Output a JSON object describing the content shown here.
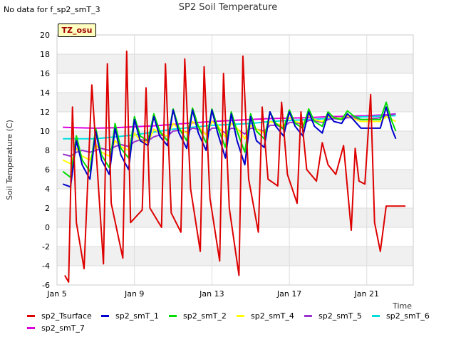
{
  "header": {
    "nodata_text": "No data for f_sp2_smT_3",
    "badge_text": "TZ_osu"
  },
  "chart_data": {
    "type": "line",
    "title": "SP2 Soil Temperature",
    "xlabel": "Time",
    "ylabel": "Soil Temperature (C)",
    "ylim": [
      -6,
      20
    ],
    "yticks": [
      -6,
      -4,
      -2,
      0,
      2,
      4,
      6,
      8,
      10,
      12,
      14,
      16,
      18,
      20
    ],
    "xlim": [
      "Jan 5",
      "Jan 23.4"
    ],
    "xticks": [
      "Jan 5",
      "Jan 9",
      "Jan 13",
      "Jan 17",
      "Jan 21"
    ],
    "grid": true,
    "legend_position": "bottom",
    "series": [
      {
        "name": "sp2_Tsurface",
        "color": "#dd0000",
        "x": [
          "Jan 5.4",
          "Jan 5.6",
          "Jan 5.8",
          "Jan 6.0",
          "Jan 6.4",
          "Jan 6.8",
          "Jan 7.4",
          "Jan 7.6",
          "Jan 7.8",
          "Jan 8.4",
          "Jan 8.6",
          "Jan 8.8",
          "Jan 9.4",
          "Jan 9.6",
          "Jan 9.8",
          "Jan 10.4",
          "Jan 10.6",
          "Jan 10.9",
          "Jan 11.4",
          "Jan 11.6",
          "Jan 11.9",
          "Jan 12.4",
          "Jan 12.6",
          "Jan 12.9",
          "Jan 13.4",
          "Jan 13.6",
          "Jan 13.9",
          "Jan 14.4",
          "Jan 14.6",
          "Jan 14.9",
          "Jan 15.4",
          "Jan 15.6",
          "Jan 15.9",
          "Jan 16.4",
          "Jan 16.6",
          "Jan 16.9",
          "Jan 17.4",
          "Jan 17.6",
          "Jan 17.9",
          "Jan 18.4",
          "Jan 18.7",
          "Jan 19.0",
          "Jan 19.4",
          "Jan 19.8",
          "Jan 20.2",
          "Jan 20.4",
          "Jan 20.6",
          "Jan 20.9",
          "Jan 21.2",
          "Jan 21.4",
          "Jan 21.7",
          "Jan 22.0",
          "Jan 22.4",
          "Jan 22.8",
          "Jan 23.0"
        ],
        "values": [
          -5.0,
          -5.7,
          12.5,
          0.5,
          -4.3,
          14.8,
          -3.8,
          17.0,
          2.5,
          -3.2,
          18.3,
          0.5,
          1.8,
          14.5,
          2.0,
          0.0,
          17.0,
          1.5,
          -0.5,
          17.5,
          4.0,
          -2.5,
          16.7,
          3.0,
          -3.5,
          16.0,
          2.0,
          -5.0,
          17.8,
          5.0,
          -0.5,
          12.5,
          5.0,
          4.3,
          13.0,
          5.5,
          2.5,
          12.0,
          6.0,
          4.8,
          8.8,
          6.5,
          5.5,
          8.5,
          -0.3,
          8.2,
          4.8,
          4.5,
          13.8,
          0.5,
          -2.5,
          2.2,
          2.2,
          2.2,
          2.2
        ]
      },
      {
        "name": "sp2_smT_1",
        "color": "#0000cc",
        "x": [
          "Jan 5.3",
          "Jan 5.7",
          "Jan 6.0",
          "Jan 6.3",
          "Jan 6.7",
          "Jan 7.0",
          "Jan 7.3",
          "Jan 7.7",
          "Jan 8.0",
          "Jan 8.3",
          "Jan 8.7",
          "Jan 9.0",
          "Jan 9.3",
          "Jan 9.7",
          "Jan 10.0",
          "Jan 10.3",
          "Jan 10.7",
          "Jan 11.0",
          "Jan 11.3",
          "Jan 11.7",
          "Jan 12.0",
          "Jan 12.3",
          "Jan 12.7",
          "Jan 13.0",
          "Jan 13.3",
          "Jan 13.7",
          "Jan 14.0",
          "Jan 14.3",
          "Jan 14.7",
          "Jan 15.0",
          "Jan 15.3",
          "Jan 15.7",
          "Jan 16.0",
          "Jan 16.3",
          "Jan 16.7",
          "Jan 17.0",
          "Jan 17.3",
          "Jan 17.7",
          "Jan 18.0",
          "Jan 18.3",
          "Jan 18.7",
          "Jan 19.0",
          "Jan 19.3",
          "Jan 19.7",
          "Jan 20.0",
          "Jan 20.3",
          "Jan 20.7",
          "Jan 21.0",
          "Jan 21.3",
          "Jan 21.7",
          "Jan 22.0",
          "Jan 22.3",
          "Jan 22.5"
        ],
        "values": [
          4.5,
          4.2,
          9.0,
          6.5,
          5.0,
          10.0,
          7.0,
          5.5,
          10.3,
          7.5,
          6.0,
          11.2,
          9.0,
          8.5,
          11.5,
          9.5,
          8.5,
          12.2,
          9.8,
          8.2,
          12.2,
          9.8,
          8.0,
          12.2,
          9.8,
          7.2,
          11.8,
          9.0,
          6.5,
          11.5,
          9.0,
          8.3,
          12.0,
          10.5,
          9.5,
          12.0,
          10.5,
          9.5,
          12.0,
          10.5,
          9.8,
          11.8,
          11.0,
          10.8,
          11.8,
          11.2,
          10.3,
          10.3,
          10.3,
          10.3,
          12.5,
          10.2,
          9.2
        ]
      },
      {
        "name": "sp2_smT_2",
        "color": "#00dd00",
        "x": [
          "Jan 5.3",
          "Jan 5.7",
          "Jan 6.0",
          "Jan 6.3",
          "Jan 6.7",
          "Jan 7.0",
          "Jan 7.3",
          "Jan 7.7",
          "Jan 8.0",
          "Jan 8.3",
          "Jan 8.7",
          "Jan 9.0",
          "Jan 9.3",
          "Jan 9.7",
          "Jan 10.0",
          "Jan 10.3",
          "Jan 10.7",
          "Jan 11.0",
          "Jan 11.3",
          "Jan 11.7",
          "Jan 12.0",
          "Jan 12.3",
          "Jan 12.7",
          "Jan 13.0",
          "Jan 13.3",
          "Jan 13.7",
          "Jan 14.0",
          "Jan 14.3",
          "Jan 14.7",
          "Jan 15.0",
          "Jan 15.3",
          "Jan 15.7",
          "Jan 16.0",
          "Jan 16.3",
          "Jan 16.7",
          "Jan 17.0",
          "Jan 17.3",
          "Jan 17.7",
          "Jan 18.0",
          "Jan 18.3",
          "Jan 18.7",
          "Jan 19.0",
          "Jan 19.3",
          "Jan 19.7",
          "Jan 20.0",
          "Jan 20.3",
          "Jan 20.7",
          "Jan 21.0",
          "Jan 21.3",
          "Jan 21.7",
          "Jan 22.0",
          "Jan 22.3",
          "Jan 22.5"
        ],
        "values": [
          5.8,
          5.2,
          9.5,
          7.0,
          5.8,
          10.3,
          7.5,
          6.2,
          10.8,
          8.2,
          7.2,
          11.5,
          9.5,
          9.0,
          11.8,
          10.0,
          9.0,
          12.3,
          10.3,
          9.0,
          12.4,
          10.5,
          8.8,
          12.3,
          10.4,
          8.3,
          12.0,
          10.0,
          7.8,
          11.8,
          10.0,
          9.2,
          12.0,
          10.8,
          10.2,
          12.2,
          10.8,
          10.3,
          12.3,
          11.0,
          10.5,
          12.0,
          11.4,
          11.2,
          12.1,
          11.6,
          11.2,
          11.2,
          11.2,
          11.2,
          13.0,
          11.0,
          10.0
        ]
      },
      {
        "name": "sp2_smT_4",
        "color": "#ffff00",
        "x": [
          "Jan 5.3",
          "Jan 5.7",
          "Jan 6.0",
          "Jan 6.3",
          "Jan 6.7",
          "Jan 7.0",
          "Jan 7.3",
          "Jan 7.7",
          "Jan 8.0",
          "Jan 8.3",
          "Jan 8.7",
          "Jan 9.0",
          "Jan 9.3",
          "Jan 9.7",
          "Jan 10.0",
          "Jan 10.3",
          "Jan 10.7",
          "Jan 11.0",
          "Jan 11.3",
          "Jan 11.7",
          "Jan 12.0",
          "Jan 12.3",
          "Jan 12.7",
          "Jan 13.0",
          "Jan 13.3",
          "Jan 13.7",
          "Jan 14.0",
          "Jan 14.3",
          "Jan 14.7",
          "Jan 15.0",
          "Jan 15.3",
          "Jan 15.7",
          "Jan 16.0",
          "Jan 16.3",
          "Jan 16.7",
          "Jan 17.0",
          "Jan 17.3",
          "Jan 17.7",
          "Jan 18.0",
          "Jan 18.3",
          "Jan 18.7",
          "Jan 19.0",
          "Jan 19.3",
          "Jan 19.7",
          "Jan 20.0",
          "Jan 20.3",
          "Jan 20.7",
          "Jan 21.0",
          "Jan 21.3",
          "Jan 21.7",
          "Jan 22.0",
          "Jan 22.3",
          "Jan 22.5"
        ],
        "values": [
          7.0,
          6.6,
          8.2,
          7.4,
          7.0,
          8.6,
          7.8,
          7.4,
          9.0,
          8.4,
          8.0,
          9.8,
          9.0,
          8.8,
          10.2,
          9.8,
          9.5,
          10.8,
          10.2,
          9.8,
          11.0,
          10.5,
          9.6,
          11.0,
          10.6,
          9.4,
          10.8,
          10.3,
          9.2,
          10.6,
          10.2,
          9.8,
          11.0,
          10.8,
          10.5,
          11.4,
          11.0,
          10.8,
          11.6,
          11.2,
          11.0,
          11.5,
          11.4,
          11.3,
          11.6,
          11.3,
          11.0,
          11.0,
          11.0,
          11.0,
          11.5,
          11.2,
          11.0
        ]
      },
      {
        "name": "sp2_smT_5",
        "color": "#9933cc",
        "x": [
          "Jan 5.3",
          "Jan 5.7",
          "Jan 6.0",
          "Jan 6.3",
          "Jan 6.7",
          "Jan 7.0",
          "Jan 7.3",
          "Jan 7.7",
          "Jan 8.0",
          "Jan 8.3",
          "Jan 8.7",
          "Jan 9.0",
          "Jan 9.3",
          "Jan 9.7",
          "Jan 10.0",
          "Jan 10.3",
          "Jan 10.7",
          "Jan 11.0",
          "Jan 11.3",
          "Jan 11.7",
          "Jan 12.0",
          "Jan 12.3",
          "Jan 12.7",
          "Jan 13.0",
          "Jan 13.3",
          "Jan 13.7",
          "Jan 14.0",
          "Jan 14.3",
          "Jan 14.7",
          "Jan 15.0",
          "Jan 15.3",
          "Jan 15.7",
          "Jan 16.0",
          "Jan 16.3",
          "Jan 16.7",
          "Jan 17.0",
          "Jan 17.3",
          "Jan 17.7",
          "Jan 18.0",
          "Jan 18.3",
          "Jan 18.7",
          "Jan 19.0",
          "Jan 19.3",
          "Jan 19.7",
          "Jan 20.0",
          "Jan 20.3",
          "Jan 20.7",
          "Jan 21.0",
          "Jan 21.3",
          "Jan 21.7",
          "Jan 22.0",
          "Jan 22.3",
          "Jan 22.5"
        ],
        "values": [
          7.6,
          7.4,
          7.8,
          8.0,
          7.8,
          8.0,
          8.2,
          8.0,
          8.4,
          8.6,
          8.4,
          8.9,
          9.1,
          9.0,
          9.4,
          9.6,
          9.5,
          10.0,
          10.1,
          9.9,
          10.3,
          10.2,
          9.7,
          10.3,
          10.3,
          9.8,
          10.3,
          10.2,
          9.7,
          10.3,
          10.2,
          10.0,
          10.6,
          10.6,
          10.4,
          10.9,
          10.9,
          10.7,
          11.1,
          11.1,
          10.9,
          11.2,
          11.3,
          11.2,
          11.4,
          11.4,
          11.2,
          11.2,
          11.3,
          11.4,
          11.6,
          11.7,
          11.8
        ]
      },
      {
        "name": "sp2_smT_6",
        "color": "#00dddd",
        "x": [
          "Jan 5.3",
          "Jan 6.0",
          "Jan 7.0",
          "Jan 8.0",
          "Jan 9.0",
          "Jan 10.0",
          "Jan 11.0",
          "Jan 12.0",
          "Jan 13.0",
          "Jan 14.0",
          "Jan 15.0",
          "Jan 16.0",
          "Jan 17.0",
          "Jan 18.0",
          "Jan 19.0",
          "Jan 20.0",
          "Jan 21.0",
          "Jan 22.0",
          "Jan 22.5"
        ],
        "values": [
          9.2,
          9.2,
          9.2,
          9.4,
          9.6,
          9.9,
          10.2,
          10.4,
          10.6,
          10.7,
          10.8,
          11.0,
          11.1,
          11.2,
          11.3,
          11.4,
          11.5,
          11.6,
          11.6
        ]
      },
      {
        "name": "sp2_smT_7",
        "color": "#dd00dd",
        "x": [
          "Jan 5.3",
          "Jan 6.0",
          "Jan 7.0",
          "Jan 8.0",
          "Jan 9.0",
          "Jan 10.0",
          "Jan 11.0",
          "Jan 12.0",
          "Jan 13.0",
          "Jan 14.0",
          "Jan 15.0",
          "Jan 16.0",
          "Jan 17.0",
          "Jan 18.0",
          "Jan 19.0",
          "Jan 20.0",
          "Jan 21.0",
          "Jan 22.0",
          "Jan 22.5"
        ],
        "values": [
          10.4,
          10.35,
          10.3,
          10.35,
          10.45,
          10.55,
          10.7,
          10.85,
          11.0,
          11.1,
          11.2,
          11.3,
          11.35,
          11.4,
          11.5,
          11.55,
          11.6,
          11.7,
          11.8
        ]
      }
    ]
  }
}
